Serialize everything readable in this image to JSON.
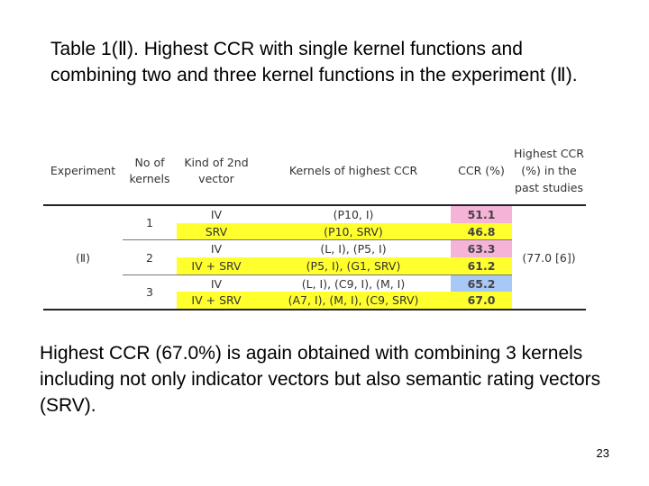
{
  "title": "Table 1(Ⅱ). Highest CCR with single kernel functions and combining two and three kernel functions in the experiment (Ⅱ).",
  "table": {
    "headers": {
      "experiment": "Experiment",
      "num_kernels": "No of kernels",
      "kind": "Kind of 2nd vector",
      "kernels": "Kernels of highest CCR",
      "ccr": "CCR (%)",
      "past": "Highest CCR (%) in the past studies"
    },
    "experiment_label": "(Ⅱ)",
    "past_value": "(77.0 [6])",
    "groups": [
      {
        "n": "1",
        "rows": [
          {
            "kind": "IV",
            "kernels": "(P10, I)",
            "ccr": "51.1",
            "color": "#f6b3d8"
          },
          {
            "kind": "SRV",
            "kernels": "(P10, SRV)",
            "ccr": "46.8",
            "color": "#ffff2e"
          }
        ]
      },
      {
        "n": "2",
        "rows": [
          {
            "kind": "IV",
            "kernels": "(L, I), (P5, I)",
            "ccr": "63.3",
            "color": "#f6b3d8"
          },
          {
            "kind": "IV + SRV",
            "kernels": "(P5, I), (G1, SRV)",
            "ccr": "61.2",
            "color": "#ffff2e"
          }
        ]
      },
      {
        "n": "3",
        "rows": [
          {
            "kind": "IV",
            "kernels": "(L, I), (C9, I), (M, I)",
            "ccr": "65.2",
            "color": "#a8c8f8"
          },
          {
            "kind": "IV + SRV",
            "kernels": "(A7, I), (M, I), (C9, SRV)",
            "ccr": "67.0",
            "color": "#ffff2e"
          }
        ]
      }
    ]
  },
  "summary": "Highest CCR (67.0%) is again obtained with combining 3 kernels including not only indicator vectors but also semantic rating vectors (SRV).",
  "page_number": "23"
}
